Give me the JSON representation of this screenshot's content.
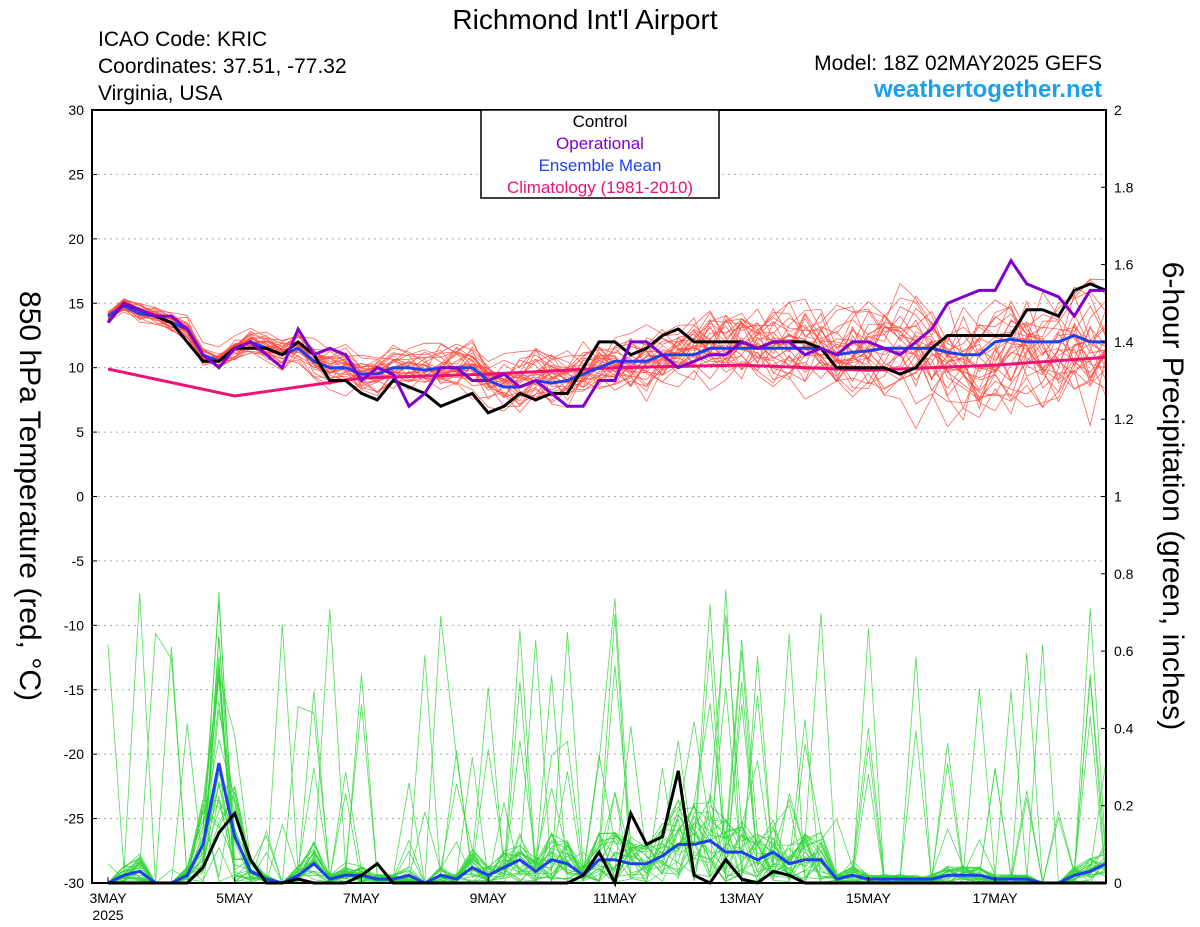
{
  "header": {
    "title": "Richmond Int'l Airport",
    "icao": "ICAO Code: KRIC",
    "coords": "Coordinates: 37.51, -77.32",
    "region": "Virginia, USA",
    "model": "Model: 18Z 02MAY2025 GEFS",
    "site": "weathertogether.net"
  },
  "colors": {
    "background": "#ffffff",
    "grid": "#aaaaaa",
    "ensemble_temp": "#ff4a3d",
    "ensemble_precip": "#33d63a",
    "control": "#000000",
    "operational": "#8000d0",
    "mean": "#2040ee",
    "climatology": "#ee1177",
    "site_link": "#1aa0ee"
  },
  "legend": {
    "items": [
      {
        "label": "Control",
        "color": "#000000"
      },
      {
        "label": "Operational",
        "color": "#8000d0"
      },
      {
        "label": "Ensemble Mean",
        "color": "#2040ee"
      },
      {
        "label": "Climatology (1981-2010)",
        "color": "#ee1177"
      }
    ]
  },
  "chart_data": {
    "type": "line",
    "x_unit": "forecast hour from 00Z 3MAY2025",
    "x_range": [
      0,
      378
    ],
    "x_ticks": [
      {
        "hour": 0,
        "label": "3MAY",
        "sublabel": "2025"
      },
      {
        "hour": 48,
        "label": "5MAY",
        "sublabel": ""
      },
      {
        "hour": 96,
        "label": "7MAY",
        "sublabel": ""
      },
      {
        "hour": 144,
        "label": "9MAY",
        "sublabel": ""
      },
      {
        "hour": 192,
        "label": "11MAY",
        "sublabel": ""
      },
      {
        "hour": 240,
        "label": "13MAY",
        "sublabel": ""
      },
      {
        "hour": 288,
        "label": "15MAY",
        "sublabel": ""
      },
      {
        "hour": 336,
        "label": "17MAY",
        "sublabel": ""
      }
    ],
    "y_left": {
      "label": "850 hPa Temperature (red, °C)",
      "range": [
        -30,
        30
      ],
      "ticks": [
        "30",
        "25",
        "20",
        "15",
        "10",
        "5",
        "0",
        "-5",
        "-10",
        "-15",
        "-20",
        "-25",
        "-30"
      ]
    },
    "y_right": {
      "label": "6-hour Precipitation (green, inches)",
      "range": [
        0,
        2
      ],
      "ticks": [
        "2",
        "1.8",
        "1.6",
        "1.4",
        "1.2",
        "1",
        "0.8",
        "0.6",
        "0.4",
        "0.2",
        "0"
      ]
    },
    "grid": true,
    "legend_position": "top-center",
    "series": {
      "operational_temp": {
        "x": [
          0,
          6,
          12,
          18,
          24,
          30,
          36,
          42,
          48,
          54,
          60,
          66,
          72,
          78,
          84,
          90,
          96,
          102,
          108,
          114,
          120,
          126,
          132,
          138,
          144,
          150,
          156,
          162,
          168,
          174,
          180,
          186,
          192,
          198,
          204,
          210,
          216,
          222,
          228,
          234,
          240,
          246,
          252,
          258,
          264,
          270,
          276,
          282,
          288,
          294,
          300,
          306,
          312,
          318,
          324,
          330,
          336,
          342,
          348,
          354,
          360,
          366,
          372,
          378
        ],
        "y": [
          13.5,
          15,
          14.5,
          14,
          14,
          13,
          11,
          10,
          11.5,
          12,
          11,
          10,
          13,
          11,
          11.5,
          11,
          9,
          10,
          9.5,
          7,
          8,
          10,
          10,
          9,
          9,
          9.5,
          8.5,
          9,
          8,
          7,
          7,
          9,
          9,
          12,
          12,
          11,
          10,
          10.5,
          11,
          11,
          12,
          11.5,
          12,
          12,
          11,
          11.5,
          11,
          12,
          12,
          11.5,
          11,
          12,
          13,
          15,
          15.5,
          16,
          16,
          18.3,
          16.5,
          16,
          15.5,
          14,
          16,
          16
        ]
      },
      "control_temp": {
        "x": [
          0,
          6,
          12,
          18,
          24,
          30,
          36,
          42,
          48,
          54,
          60,
          66,
          72,
          78,
          84,
          90,
          96,
          102,
          108,
          114,
          120,
          126,
          132,
          138,
          144,
          150,
          156,
          162,
          168,
          174,
          180,
          186,
          192,
          198,
          204,
          210,
          216,
          222,
          228,
          234,
          240,
          246,
          252,
          258,
          264,
          270,
          276,
          282,
          288,
          294,
          300,
          306,
          312,
          318,
          324,
          330,
          336,
          342,
          348,
          354,
          360,
          366,
          372,
          378
        ],
        "y": [
          13.5,
          15,
          14.5,
          14,
          13.5,
          12,
          10.5,
          10.5,
          11.5,
          11.5,
          11.5,
          11,
          12,
          11,
          9,
          9,
          8,
          7.5,
          9,
          8.5,
          8,
          7,
          7.5,
          8,
          6.5,
          7,
          8,
          7.5,
          8,
          8,
          10,
          12,
          12,
          11,
          11.5,
          12.5,
          13,
          12,
          12,
          12,
          12,
          11.5,
          12,
          12,
          12,
          11.5,
          10,
          10,
          10,
          10,
          9.5,
          10,
          11.5,
          12.5,
          12.5,
          12.5,
          12.5,
          12.5,
          14.5,
          14.5,
          14,
          16,
          16.5,
          16
        ]
      },
      "mean_temp": {
        "x": [
          0,
          6,
          12,
          18,
          24,
          30,
          36,
          42,
          48,
          54,
          60,
          66,
          72,
          78,
          84,
          90,
          96,
          102,
          108,
          114,
          120,
          126,
          132,
          138,
          144,
          150,
          156,
          162,
          168,
          174,
          180,
          186,
          192,
          198,
          204,
          210,
          216,
          222,
          228,
          234,
          240,
          246,
          252,
          258,
          264,
          270,
          276,
          282,
          288,
          294,
          300,
          306,
          312,
          318,
          324,
          330,
          336,
          342,
          348,
          354,
          360,
          366,
          372,
          378
        ],
        "y": [
          14,
          14.8,
          14.2,
          14,
          13.5,
          13,
          11,
          10.5,
          11.5,
          12,
          11.5,
          11,
          11.5,
          10.5,
          10,
          10,
          9.5,
          9.5,
          10,
          10,
          9.8,
          10,
          10,
          10,
          9,
          8.5,
          8.5,
          9,
          8.8,
          9,
          9.5,
          10,
          10.5,
          10.5,
          10.5,
          11,
          11,
          11,
          11.5,
          11.5,
          11.5,
          11.5,
          11.5,
          11.5,
          11.5,
          11.5,
          11,
          11.2,
          11.3,
          11.5,
          11.5,
          11.5,
          11.5,
          11.2,
          11,
          11,
          12,
          12.2,
          12,
          12,
          12,
          12.5,
          12,
          12
        ]
      },
      "climatology_temp": {
        "x": [
          0,
          48,
          96,
          144,
          192,
          240,
          288,
          336,
          378
        ],
        "y": [
          9.9,
          7.8,
          9.2,
          9.5,
          10,
          10.2,
          9.8,
          10.2,
          10.8
        ]
      },
      "control_precip": {
        "x": [
          0,
          6,
          12,
          18,
          24,
          30,
          36,
          42,
          48,
          54,
          60,
          66,
          72,
          78,
          84,
          90,
          96,
          102,
          108,
          114,
          120,
          126,
          132,
          138,
          144,
          150,
          156,
          162,
          168,
          174,
          180,
          186,
          192,
          198,
          204,
          210,
          216,
          222,
          228,
          234,
          240,
          246,
          252,
          258,
          264,
          270,
          276,
          282,
          288,
          294,
          300,
          306,
          312,
          318,
          324,
          330,
          336,
          342,
          348,
          354,
          360,
          366,
          372,
          378
        ],
        "y": [
          0,
          0,
          0,
          0,
          0,
          0,
          0.04,
          0.13,
          0.18,
          0.06,
          0,
          0,
          0.01,
          0,
          0,
          0,
          0.02,
          0.05,
          0,
          0,
          0,
          0,
          0,
          0,
          0,
          0,
          0,
          0,
          0,
          0,
          0.02,
          0.08,
          0,
          0.18,
          0.1,
          0.12,
          0.29,
          0.02,
          0,
          0.06,
          0.01,
          0,
          0.03,
          0.02,
          0,
          0,
          0,
          0,
          0,
          0,
          0,
          0,
          0,
          0,
          0,
          0,
          0,
          0,
          0,
          0,
          0,
          0,
          0,
          0
        ]
      },
      "mean_precip": {
        "x": [
          0,
          6,
          12,
          18,
          24,
          30,
          36,
          42,
          48,
          54,
          60,
          66,
          72,
          78,
          84,
          90,
          96,
          102,
          108,
          114,
          120,
          126,
          132,
          138,
          144,
          150,
          156,
          162,
          168,
          174,
          180,
          186,
          192,
          198,
          204,
          210,
          216,
          222,
          228,
          234,
          240,
          246,
          252,
          258,
          264,
          270,
          276,
          282,
          288,
          294,
          300,
          306,
          312,
          318,
          324,
          330,
          336,
          342,
          348,
          354,
          360,
          366,
          372,
          378
        ],
        "y": [
          0,
          0.02,
          0.03,
          0,
          0,
          0.02,
          0.1,
          0.31,
          0.12,
          0.03,
          0.01,
          0,
          0.02,
          0.05,
          0.01,
          0.02,
          0.02,
          0.01,
          0.01,
          0.02,
          0,
          0.02,
          0.01,
          0.04,
          0.02,
          0.04,
          0.06,
          0.03,
          0.06,
          0.05,
          0.02,
          0.06,
          0.06,
          0.05,
          0.05,
          0.07,
          0.1,
          0.1,
          0.11,
          0.08,
          0.08,
          0.06,
          0.08,
          0.05,
          0.06,
          0.06,
          0.01,
          0.02,
          0.01,
          0.01,
          0.01,
          0.01,
          0.01,
          0.02,
          0.02,
          0.02,
          0.01,
          0.01,
          0.01,
          0,
          0,
          0.02,
          0.03,
          0.05
        ]
      }
    }
  }
}
